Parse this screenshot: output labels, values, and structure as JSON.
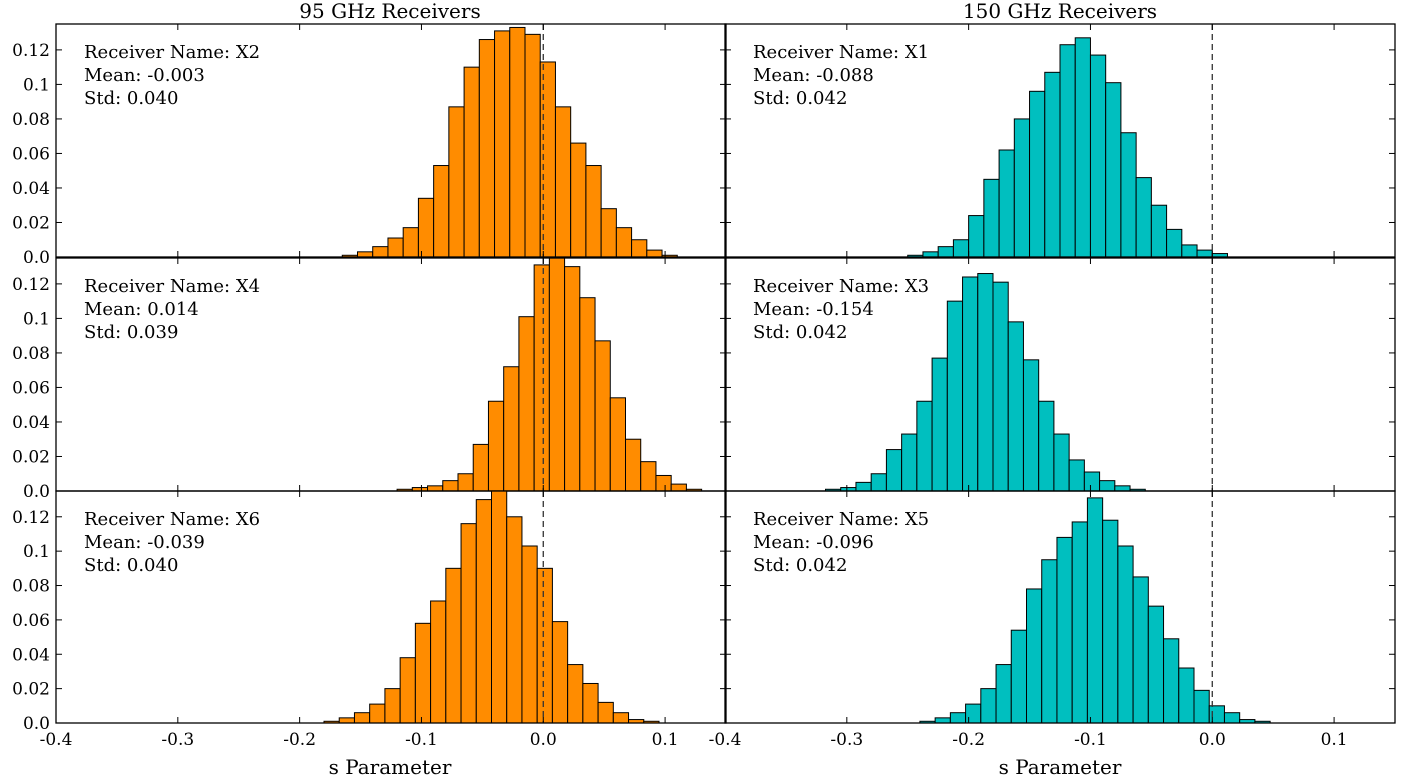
{
  "figure": {
    "column_titles": [
      "95 GHz Receivers",
      "150 GHz Receivers"
    ],
    "xlabel": "s Parameter",
    "colors": {
      "95": "#ff8c00",
      "150": "#00bfbf",
      "edge": "#000000"
    },
    "annotation_labels": {
      "name": "Receiver Name:",
      "mean": "Mean:",
      "std": "Std:"
    }
  },
  "chart_data": [
    {
      "type": "bar",
      "histogram": true,
      "band": "95 GHz",
      "receiver": "X2",
      "mean": "-0.003",
      "std": "0.040",
      "xlim": [
        -0.4,
        0.15
      ],
      "ylim": [
        0,
        0.135
      ],
      "xticks": [
        -0.4,
        -0.3,
        -0.2,
        -0.1,
        0.0,
        0.1
      ],
      "yticks": [
        0.0,
        0.02,
        0.04,
        0.06,
        0.08,
        0.1,
        0.12
      ],
      "reference_line_x": 0.0,
      "bin_start": -0.19,
      "bin_width": 0.0125,
      "values": [
        0.0,
        0.0,
        0.001,
        0.003,
        0.006,
        0.011,
        0.017,
        0.034,
        0.053,
        0.087,
        0.11,
        0.126,
        0.131,
        0.133,
        0.129,
        0.113,
        0.087,
        0.066,
        0.053,
        0.028,
        0.017,
        0.01,
        0.004,
        0.001
      ]
    },
    {
      "type": "bar",
      "histogram": true,
      "band": "150 GHz",
      "receiver": "X1",
      "mean": "-0.088",
      "std": "0.042",
      "xlim": [
        -0.4,
        0.15
      ],
      "ylim": [
        0,
        0.135
      ],
      "xticks": [
        -0.4,
        -0.3,
        -0.2,
        -0.1,
        0.0,
        0.1
      ],
      "yticks": [
        0.0,
        0.02,
        0.04,
        0.06,
        0.08,
        0.1,
        0.12
      ],
      "reference_line_x": 0.0,
      "bin_start": -0.25,
      "bin_width": 0.0125,
      "values": [
        0.001,
        0.003,
        0.006,
        0.01,
        0.024,
        0.045,
        0.062,
        0.08,
        0.096,
        0.107,
        0.123,
        0.127,
        0.117,
        0.101,
        0.072,
        0.046,
        0.03,
        0.016,
        0.007,
        0.004,
        0.002
      ]
    },
    {
      "type": "bar",
      "histogram": true,
      "band": "95 GHz",
      "receiver": "X4",
      "mean": "0.014",
      "std": "0.039",
      "xlim": [
        -0.4,
        0.15
      ],
      "ylim": [
        0,
        0.135
      ],
      "xticks": [
        -0.4,
        -0.3,
        -0.2,
        -0.1,
        0.0,
        0.1
      ],
      "yticks": [
        0.0,
        0.02,
        0.04,
        0.06,
        0.08,
        0.1,
        0.12
      ],
      "reference_line_x": 0.0,
      "bin_start": -0.12,
      "bin_width": 0.0125,
      "values": [
        0.001,
        0.002,
        0.003,
        0.006,
        0.01,
        0.027,
        0.052,
        0.072,
        0.101,
        0.131,
        0.135,
        0.13,
        0.112,
        0.087,
        0.054,
        0.03,
        0.017,
        0.009,
        0.004,
        0.001
      ]
    },
    {
      "type": "bar",
      "histogram": true,
      "band": "150 GHz",
      "receiver": "X3",
      "mean": "-0.154",
      "std": "0.042",
      "xlim": [
        -0.4,
        0.15
      ],
      "ylim": [
        0,
        0.135
      ],
      "xticks": [
        -0.4,
        -0.3,
        -0.2,
        -0.1,
        0.0,
        0.1
      ],
      "yticks": [
        0.0,
        0.02,
        0.04,
        0.06,
        0.08,
        0.1,
        0.12
      ],
      "reference_line_x": 0.0,
      "bin_start": -0.33,
      "bin_width": 0.0125,
      "values": [
        0.0,
        0.001,
        0.002,
        0.005,
        0.01,
        0.024,
        0.033,
        0.052,
        0.077,
        0.11,
        0.124,
        0.126,
        0.121,
        0.098,
        0.076,
        0.052,
        0.033,
        0.018,
        0.011,
        0.006,
        0.003,
        0.001
      ]
    },
    {
      "type": "bar",
      "histogram": true,
      "band": "95 GHz",
      "receiver": "X6",
      "mean": "-0.039",
      "std": "0.040",
      "xlim": [
        -0.4,
        0.15
      ],
      "ylim": [
        0,
        0.135
      ],
      "xticks": [
        -0.4,
        -0.3,
        -0.2,
        -0.1,
        0.0,
        0.1
      ],
      "yticks": [
        0.0,
        0.02,
        0.04,
        0.06,
        0.08,
        0.1,
        0.12
      ],
      "reference_line_x": 0.0,
      "bin_start": -0.18,
      "bin_width": 0.0125,
      "values": [
        0.001,
        0.003,
        0.006,
        0.011,
        0.02,
        0.038,
        0.058,
        0.071,
        0.09,
        0.116,
        0.13,
        0.138,
        0.12,
        0.103,
        0.09,
        0.059,
        0.034,
        0.023,
        0.012,
        0.006,
        0.002,
        0.001
      ]
    },
    {
      "type": "bar",
      "histogram": true,
      "band": "150 GHz",
      "receiver": "X5",
      "mean": "-0.096",
      "std": "0.042",
      "xlim": [
        -0.4,
        0.15
      ],
      "ylim": [
        0,
        0.135
      ],
      "xticks": [
        -0.4,
        -0.3,
        -0.2,
        -0.1,
        0.0,
        0.1
      ],
      "yticks": [
        0.0,
        0.02,
        0.04,
        0.06,
        0.08,
        0.1,
        0.12
      ],
      "reference_line_x": 0.0,
      "bin_start": -0.24,
      "bin_width": 0.0125,
      "values": [
        0.001,
        0.003,
        0.006,
        0.011,
        0.02,
        0.034,
        0.054,
        0.078,
        0.095,
        0.108,
        0.117,
        0.131,
        0.118,
        0.103,
        0.085,
        0.068,
        0.049,
        0.032,
        0.019,
        0.01,
        0.006,
        0.002,
        0.001
      ]
    }
  ]
}
